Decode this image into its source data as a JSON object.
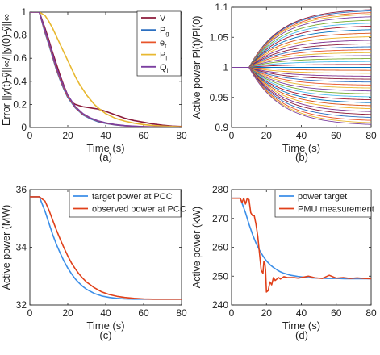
{
  "chart_data": [
    {
      "type": "line",
      "caption": "(a)",
      "xlabel": "Time (s)",
      "ylabel": "Error ||y(t)-ŷ||∞/||y(0)-ŷ||∞",
      "xlim": [
        0,
        80
      ],
      "ylim": [
        0,
        1
      ],
      "xticks": [
        0,
        20,
        40,
        60,
        80
      ],
      "yticks": [
        0,
        0.2,
        0.4,
        0.6,
        0.8,
        1
      ],
      "grid": false,
      "legend_position": "top-right",
      "series": [
        {
          "name": "V",
          "legend_sub": "",
          "color": "#8b1a3a",
          "x": [
            0,
            5,
            8,
            10,
            12,
            14,
            16,
            18,
            20,
            22,
            24,
            26,
            28,
            30,
            32,
            34,
            36,
            38,
            40,
            45,
            50,
            55,
            60,
            65,
            70,
            75,
            80
          ],
          "y": [
            1,
            1,
            0.86,
            0.76,
            0.65,
            0.55,
            0.45,
            0.36,
            0.28,
            0.22,
            0.2,
            0.19,
            0.18,
            0.175,
            0.17,
            0.165,
            0.16,
            0.15,
            0.14,
            0.11,
            0.08,
            0.06,
            0.045,
            0.03,
            0.02,
            0.012,
            0.008
          ]
        },
        {
          "name": "P",
          "legend_sub": "g",
          "color": "#2b6fc0",
          "x": [
            0,
            5,
            8,
            10,
            12,
            14,
            16,
            18,
            20,
            24,
            28,
            32,
            36,
            40,
            45,
            50,
            55,
            60,
            65,
            70,
            75,
            80
          ],
          "y": [
            1,
            1,
            0.82,
            0.72,
            0.61,
            0.5,
            0.41,
            0.33,
            0.26,
            0.17,
            0.11,
            0.075,
            0.05,
            0.035,
            0.022,
            0.014,
            0.009,
            0.006,
            0.004,
            0.003,
            0.002,
            0.001
          ]
        },
        {
          "name": "e",
          "legend_sub": "f",
          "color": "#e8552a",
          "x": [
            0,
            5,
            8,
            10,
            12,
            14,
            16,
            18,
            20,
            24,
            28,
            32,
            36,
            40,
            45,
            50,
            55,
            60,
            65,
            70,
            75,
            80
          ],
          "y": [
            1,
            1,
            0.83,
            0.73,
            0.62,
            0.51,
            0.42,
            0.34,
            0.27,
            0.175,
            0.115,
            0.08,
            0.055,
            0.038,
            0.024,
            0.015,
            0.01,
            0.007,
            0.005,
            0.003,
            0.002,
            0.001
          ]
        },
        {
          "name": "P",
          "legend_sub": "l",
          "color": "#e8b830",
          "x": [
            0,
            5,
            8,
            10,
            12,
            14,
            16,
            18,
            20,
            22,
            24,
            26,
            28,
            30,
            32,
            34,
            36,
            40,
            45,
            50,
            55,
            60,
            65,
            70,
            75,
            80
          ],
          "y": [
            1,
            1,
            0.97,
            0.92,
            0.86,
            0.79,
            0.72,
            0.65,
            0.58,
            0.51,
            0.44,
            0.38,
            0.33,
            0.28,
            0.24,
            0.2,
            0.17,
            0.12,
            0.08,
            0.055,
            0.037,
            0.025,
            0.017,
            0.012,
            0.008,
            0.005
          ]
        },
        {
          "name": "Q",
          "legend_sub": "l",
          "color": "#7b3fa0",
          "x": [
            0,
            5,
            8,
            10,
            12,
            14,
            16,
            18,
            20,
            24,
            28,
            32,
            36,
            40,
            45,
            50,
            55,
            60,
            65,
            70,
            75,
            80
          ],
          "y": [
            1,
            1,
            0.84,
            0.74,
            0.63,
            0.52,
            0.43,
            0.35,
            0.28,
            0.18,
            0.12,
            0.082,
            0.057,
            0.04,
            0.025,
            0.016,
            0.011,
            0.007,
            0.005,
            0.003,
            0.002,
            0.001
          ]
        }
      ]
    },
    {
      "type": "line",
      "caption": "(b)",
      "xlabel": "Time (s)",
      "ylabel": "Active power Pl(t)/Pl(0)",
      "xlim": [
        0,
        80
      ],
      "ylim": [
        0.9,
        1.1
      ],
      "xticks": [
        0,
        20,
        40,
        60,
        80
      ],
      "yticks": [
        0.9,
        0.95,
        1,
        1.05,
        1.1
      ],
      "grid": false,
      "rise_start": 10,
      "time_constant": 18,
      "final_values": [
        1.098,
        1.096,
        1.093,
        1.09,
        1.086,
        1.08,
        1.075,
        1.07,
        1.064,
        1.058,
        1.052,
        1.046,
        1.04,
        1.035,
        1.03,
        1.025,
        1.02,
        1.015,
        1.01,
        1.005,
        1.0,
        0.995,
        0.99,
        0.985,
        0.98,
        0.975,
        0.97,
        0.965,
        0.96,
        0.955,
        0.95,
        0.945,
        0.94,
        0.935,
        0.93,
        0.925,
        0.92,
        0.915,
        0.91,
        0.906,
        0.903
      ],
      "colors": [
        "#8b1a3a",
        "#2b6fc0",
        "#e8552a",
        "#e8b830",
        "#7b3fa0",
        "#77ac30",
        "#4dbeee",
        "#a2142f",
        "#0072bd",
        "#d95319",
        "#edb120",
        "#7e2f8e"
      ]
    },
    {
      "type": "line",
      "caption": "(c)",
      "xlabel": "Time (s)",
      "ylabel": "Active power (MW)",
      "xlim": [
        0,
        80
      ],
      "ylim": [
        32,
        36
      ],
      "xticks": [
        0,
        20,
        40,
        60,
        80
      ],
      "yticks": [
        32,
        34,
        36
      ],
      "grid": false,
      "legend_position": "top-right",
      "series": [
        {
          "name": "target power at PCC",
          "color": "#3b8ee8",
          "x": [
            0,
            5,
            8,
            10,
            12,
            14,
            16,
            18,
            20,
            22,
            24,
            26,
            28,
            30,
            34,
            38,
            42,
            46,
            50,
            55,
            60,
            65,
            70,
            75,
            80
          ],
          "y": [
            35.75,
            35.75,
            35.25,
            34.85,
            34.45,
            34.1,
            33.8,
            33.52,
            33.28,
            33.08,
            32.9,
            32.76,
            32.64,
            32.54,
            32.4,
            32.31,
            32.26,
            32.23,
            32.21,
            32.2,
            32.2,
            32.2,
            32.2,
            32.2,
            32.2
          ]
        },
        {
          "name": "observed power at PCC",
          "color": "#e0401a",
          "x": [
            0,
            5,
            8,
            10,
            12,
            14,
            16,
            18,
            20,
            22,
            24,
            26,
            28,
            30,
            34,
            38,
            42,
            46,
            50,
            55,
            60,
            65,
            70,
            75,
            80
          ],
          "y": [
            35.75,
            35.75,
            35.6,
            35.3,
            34.95,
            34.6,
            34.28,
            33.98,
            33.7,
            33.45,
            33.25,
            33.07,
            32.92,
            32.79,
            32.6,
            32.45,
            32.36,
            32.3,
            32.26,
            32.23,
            32.21,
            32.2,
            32.2,
            32.2,
            32.2
          ]
        }
      ]
    },
    {
      "type": "line",
      "caption": "(d)",
      "xlabel": "Time (s)",
      "ylabel": "Active power (kW)",
      "xlim": [
        0,
        80
      ],
      "ylim": [
        240,
        280
      ],
      "xticks": [
        0,
        20,
        40,
        60,
        80
      ],
      "yticks": [
        240,
        250,
        260,
        270,
        280
      ],
      "grid": false,
      "legend_position": "top-right",
      "series": [
        {
          "name": "power target",
          "color": "#3b8ee8",
          "x": [
            0,
            5,
            8,
            10,
            12,
            14,
            16,
            18,
            20,
            22,
            24,
            26,
            28,
            30,
            34,
            38,
            42,
            46,
            50,
            55,
            60,
            65,
            70,
            75,
            80
          ],
          "y": [
            277,
            277,
            272,
            268,
            264.5,
            261.5,
            259,
            257,
            255.3,
            254,
            253,
            252.2,
            251.5,
            251,
            250.3,
            249.9,
            249.6,
            249.4,
            249.3,
            249.2,
            249.2,
            249.1,
            249.1,
            249.1,
            249.1
          ]
        },
        {
          "name": "PMU measurement",
          "color": "#e0401a",
          "x": [
            0,
            5,
            6,
            7,
            8,
            9,
            10,
            11,
            12,
            13,
            14,
            15,
            16,
            17,
            18,
            18.5,
            19,
            19.5,
            20,
            21,
            22,
            23,
            24,
            25,
            26,
            27,
            28,
            30,
            32,
            34,
            36,
            38,
            40,
            44,
            48,
            52,
            56,
            60,
            64,
            68,
            72,
            76,
            80
          ],
          "y": [
            277,
            277,
            275.5,
            277,
            275,
            277,
            276.5,
            272,
            271,
            271,
            268,
            264,
            258,
            252,
            251,
            255,
            255,
            252,
            244.5,
            245,
            248,
            247,
            249.5,
            248.5,
            249,
            249.5,
            249,
            249.8,
            249.5,
            249.5,
            249.5,
            249.3,
            249.5,
            250,
            249.4,
            249.2,
            250.3,
            249.3,
            249.5,
            249.2,
            249.4,
            249.2,
            249.1
          ]
        }
      ]
    }
  ]
}
